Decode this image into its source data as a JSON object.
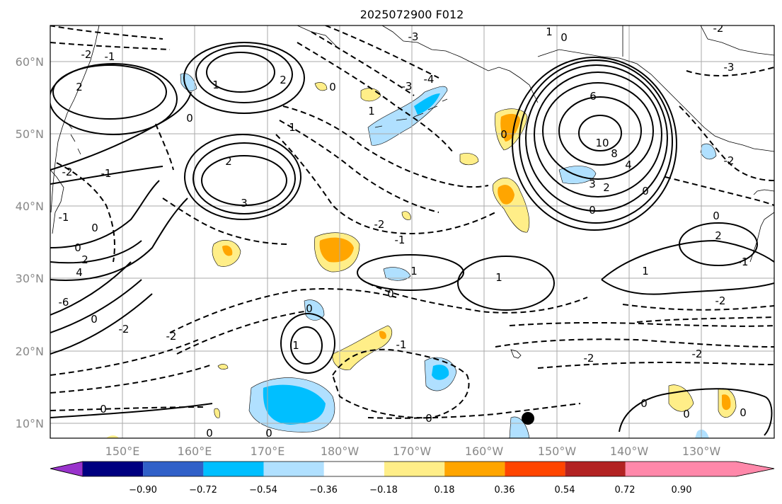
{
  "title": "2025072900 F012",
  "lat_labels": [
    "60°N",
    "50°N",
    "40°N",
    "30°N",
    "20°N",
    "10°N"
  ],
  "lon_labels": [
    "150°E",
    "160°E",
    "170°E",
    "180°W",
    "170°W",
    "160°W",
    "150°W",
    "140°W",
    "130°W"
  ],
  "colorbar": {
    "colors": [
      "#9933cc",
      "#000080",
      "#3060c8",
      "#00bfff",
      "#b0e0ff",
      "#ffffff",
      "#ffee88",
      "#ffa500",
      "#ff4500",
      "#b22222",
      "#ff88aa"
    ],
    "tick_labels": [
      "−0.90",
      "−0.72",
      "−0.54",
      "−0.36",
      "−0.18",
      "0.18",
      "0.36",
      "0.54",
      "0.72",
      "0.90"
    ]
  },
  "contour_labels": [
    "1",
    "2",
    "3",
    "4",
    "6",
    "8",
    "10",
    "0",
    "-1",
    "-2",
    "-3",
    "-4",
    "-6"
  ],
  "colors": {
    "positive_contour": "#000000",
    "negative_contour": "#000000",
    "coastline": "#000000",
    "grid": "#aaaaaa",
    "marker": "#000000"
  }
}
